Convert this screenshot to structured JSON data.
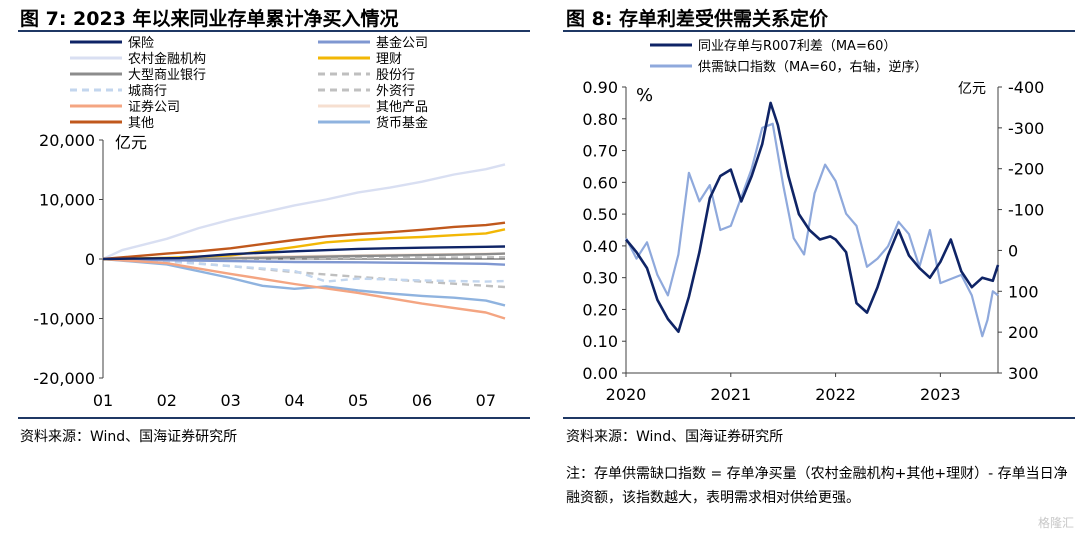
{
  "left_title": "图 7:  2023 年以来同业存单累计净买入情况",
  "right_title": "图 8:  存单利差受供需关系定价",
  "left_source": "资料来源：Wind、国海证券研究所",
  "right_source": "资料来源：Wind、国海证券研究所",
  "right_note": "注：存单供需缺口指数 = 存单净买量（农村金融机构+其他+理财）- 存单当日净融资额，该指数越大，表明需求相对供给更强。",
  "watermark": "格隆汇",
  "colors": {
    "rule": "#1f3864",
    "insurance": "#0f2466",
    "fund": "#7f97d1",
    "rural": "#d9dff2",
    "wealth": "#f2b705",
    "large_bank": "#8c8c8c",
    "joint_stock": "#bfbfbf",
    "city_bank": "#c3d6ee",
    "foreign": "#c0c0c0",
    "securities": "#f4a582",
    "other_products": "#f6dfd0",
    "others": "#c0581c",
    "money_fund": "#8fb3df",
    "spread": "#0f2466",
    "gap": "#8fa9dc"
  },
  "chart_data": [
    {
      "type": "line",
      "title": "2023 年以来同业存单累计净买入情况",
      "unit": "亿元",
      "x_ticks": [
        "01",
        "02",
        "03",
        "04",
        "05",
        "06",
        "07"
      ],
      "x_range": [
        0,
        6.3
      ],
      "ylim": [
        -20000,
        20000
      ],
      "y_ticks": [
        20000,
        10000,
        0,
        -10000,
        -20000
      ],
      "y_tick_labels": [
        "20,000",
        "10,000",
        "0",
        "-10,000",
        "-20,000"
      ],
      "legend_position": "top",
      "series": [
        {
          "key": "insurance",
          "name": "保险",
          "dash": false,
          "points": [
            [
              0,
              0
            ],
            [
              1.2,
              150
            ],
            [
              2,
              800
            ],
            [
              3,
              1300
            ],
            [
              4,
              1700
            ],
            [
              5,
              1900
            ],
            [
              6,
              2050
            ],
            [
              6.3,
              2100
            ]
          ]
        },
        {
          "key": "fund",
          "name": "基金公司",
          "dash": false,
          "points": [
            [
              0,
              0
            ],
            [
              1,
              -200
            ],
            [
              2,
              -350
            ],
            [
              3,
              -500
            ],
            [
              4,
              -550
            ],
            [
              5,
              -650
            ],
            [
              6,
              -800
            ],
            [
              6.3,
              -950
            ]
          ]
        },
        {
          "key": "rural",
          "name": "农村金融机构",
          "dash": false,
          "points": [
            [
              0,
              0
            ],
            [
              0.3,
              1500
            ],
            [
              1,
              3400
            ],
            [
              1.5,
              5200
            ],
            [
              2,
              6600
            ],
            [
              2.5,
              7800
            ],
            [
              3,
              9000
            ],
            [
              3.5,
              10000
            ],
            [
              4,
              11200
            ],
            [
              4.5,
              12000
            ],
            [
              5,
              13000
            ],
            [
              5.5,
              14200
            ],
            [
              6,
              15100
            ],
            [
              6.3,
              15900
            ]
          ]
        },
        {
          "key": "wealth",
          "name": "理财",
          "dash": false,
          "points": [
            [
              0,
              0
            ],
            [
              1,
              200
            ],
            [
              2,
              600
            ],
            [
              2.5,
              1300
            ],
            [
              3,
              2000
            ],
            [
              3.5,
              2800
            ],
            [
              4,
              3200
            ],
            [
              4.5,
              3500
            ],
            [
              5,
              3700
            ],
            [
              5.5,
              4000
            ],
            [
              6,
              4300
            ],
            [
              6.3,
              5000
            ]
          ]
        },
        {
          "key": "large_bank",
          "name": "大型商业银行",
          "dash": false,
          "points": [
            [
              0,
              0
            ],
            [
              1,
              -100
            ],
            [
              2,
              100
            ],
            [
              3,
              300
            ],
            [
              4,
              500
            ],
            [
              5,
              650
            ],
            [
              6,
              800
            ],
            [
              6.3,
              900
            ]
          ]
        },
        {
          "key": "joint_stock",
          "name": "股份行",
          "dash": true,
          "points": [
            [
              0,
              0
            ],
            [
              1,
              -300
            ],
            [
              2,
              -1200
            ],
            [
              3,
              -2200
            ],
            [
              4,
              -3000
            ],
            [
              5,
              -3800
            ],
            [
              6,
              -4500
            ],
            [
              6.3,
              -4700
            ]
          ]
        },
        {
          "key": "city_bank",
          "name": "城商行",
          "dash": true,
          "points": [
            [
              0,
              0
            ],
            [
              1,
              -400
            ],
            [
              2,
              -1200
            ],
            [
              3,
              -2000
            ],
            [
              3.5,
              -3800
            ],
            [
              4,
              -3300
            ],
            [
              5,
              -3600
            ],
            [
              6,
              -3800
            ],
            [
              6.3,
              -3700
            ]
          ]
        },
        {
          "key": "foreign",
          "name": "外资行",
          "dash": true,
          "points": [
            [
              0,
              0
            ],
            [
              2,
              100
            ],
            [
              4,
              200
            ],
            [
              6.3,
              300
            ]
          ]
        },
        {
          "key": "securities",
          "name": "证券公司",
          "dash": false,
          "points": [
            [
              0,
              0
            ],
            [
              1,
              -700
            ],
            [
              2,
              -2500
            ],
            [
              3,
              -4200
            ],
            [
              4,
              -5700
            ],
            [
              5,
              -7500
            ],
            [
              6,
              -9000
            ],
            [
              6.3,
              -10000
            ]
          ]
        },
        {
          "key": "other_products",
          "name": "其他产品",
          "dash": false,
          "points": [
            [
              0,
              0
            ],
            [
              2,
              300
            ],
            [
              4,
              600
            ],
            [
              6.3,
              900
            ]
          ]
        },
        {
          "key": "others",
          "name": "其他",
          "dash": false,
          "points": [
            [
              0,
              0
            ],
            [
              1,
              900
            ],
            [
              1.5,
              1300
            ],
            [
              2,
              1800
            ],
            [
              2.5,
              2500
            ],
            [
              3,
              3200
            ],
            [
              3.5,
              3800
            ],
            [
              4,
              4200
            ],
            [
              4.5,
              4500
            ],
            [
              5,
              4900
            ],
            [
              5.5,
              5400
            ],
            [
              6,
              5700
            ],
            [
              6.3,
              6100
            ]
          ]
        },
        {
          "key": "money_fund",
          "name": "货币基金",
          "dash": false,
          "points": [
            [
              0,
              0
            ],
            [
              1,
              -900
            ],
            [
              2,
              -3200
            ],
            [
              2.5,
              -4500
            ],
            [
              3,
              -5000
            ],
            [
              3.5,
              -4600
            ],
            [
              4,
              -5300
            ],
            [
              4.5,
              -5800
            ],
            [
              5,
              -6200
            ],
            [
              5.5,
              -6500
            ],
            [
              6,
              -7000
            ],
            [
              6.3,
              -7800
            ]
          ]
        }
      ]
    },
    {
      "type": "line",
      "title": "存单利差受供需关系定价",
      "left_unit": "%",
      "right_unit": "亿元",
      "x_ticks": [
        "2020",
        "2021",
        "2022",
        "2023"
      ],
      "x_range": [
        2020,
        2023.55
      ],
      "ylim_left": [
        0,
        0.9
      ],
      "y_ticks_left": [
        "0.90",
        "0.80",
        "0.70",
        "0.60",
        "0.50",
        "0.40",
        "0.30",
        "0.20",
        "0.10",
        "0.00"
      ],
      "ylim_right": [
        -400,
        300
      ],
      "right_axis_reversed": true,
      "y_ticks_right": [
        "-400",
        "-300",
        "-200",
        "-100",
        "0",
        "100",
        "200",
        "300"
      ],
      "legend_position": "top",
      "series": [
        {
          "key": "spread",
          "name": "同业存单与R007利差（MA=60）",
          "axis": "left",
          "points": [
            [
              2020.0,
              0.42
            ],
            [
              2020.1,
              0.38
            ],
            [
              2020.2,
              0.33
            ],
            [
              2020.3,
              0.23
            ],
            [
              2020.4,
              0.17
            ],
            [
              2020.5,
              0.13
            ],
            [
              2020.6,
              0.24
            ],
            [
              2020.7,
              0.38
            ],
            [
              2020.8,
              0.55
            ],
            [
              2020.9,
              0.62
            ],
            [
              2021.0,
              0.64
            ],
            [
              2021.1,
              0.54
            ],
            [
              2021.2,
              0.62
            ],
            [
              2021.3,
              0.72
            ],
            [
              2021.38,
              0.85
            ],
            [
              2021.45,
              0.78
            ],
            [
              2021.55,
              0.62
            ],
            [
              2021.65,
              0.5
            ],
            [
              2021.75,
              0.45
            ],
            [
              2021.85,
              0.42
            ],
            [
              2021.95,
              0.43
            ],
            [
              2022.0,
              0.42
            ],
            [
              2022.1,
              0.38
            ],
            [
              2022.2,
              0.22
            ],
            [
              2022.3,
              0.19
            ],
            [
              2022.4,
              0.27
            ],
            [
              2022.5,
              0.37
            ],
            [
              2022.6,
              0.45
            ],
            [
              2022.7,
              0.37
            ],
            [
              2022.8,
              0.33
            ],
            [
              2022.9,
              0.3
            ],
            [
              2023.0,
              0.35
            ],
            [
              2023.1,
              0.42
            ],
            [
              2023.2,
              0.32
            ],
            [
              2023.3,
              0.27
            ],
            [
              2023.4,
              0.3
            ],
            [
              2023.5,
              0.29
            ],
            [
              2023.55,
              0.34
            ]
          ]
        },
        {
          "key": "gap",
          "name": "供需缺口指数（MA=60，右轴，逆序）",
          "axis": "right",
          "points": [
            [
              2020.0,
              -30
            ],
            [
              2020.1,
              20
            ],
            [
              2020.2,
              -20
            ],
            [
              2020.3,
              60
            ],
            [
              2020.4,
              110
            ],
            [
              2020.5,
              10
            ],
            [
              2020.6,
              -190
            ],
            [
              2020.7,
              -120
            ],
            [
              2020.8,
              -160
            ],
            [
              2020.9,
              -50
            ],
            [
              2021.0,
              -60
            ],
            [
              2021.1,
              -130
            ],
            [
              2021.2,
              -200
            ],
            [
              2021.3,
              -300
            ],
            [
              2021.4,
              -310
            ],
            [
              2021.5,
              -160
            ],
            [
              2021.6,
              -30
            ],
            [
              2021.7,
              10
            ],
            [
              2021.8,
              -140
            ],
            [
              2021.9,
              -210
            ],
            [
              2022.0,
              -170
            ],
            [
              2022.1,
              -90
            ],
            [
              2022.2,
              -60
            ],
            [
              2022.3,
              40
            ],
            [
              2022.4,
              20
            ],
            [
              2022.5,
              -10
            ],
            [
              2022.6,
              -70
            ],
            [
              2022.7,
              -40
            ],
            [
              2022.8,
              40
            ],
            [
              2022.9,
              -50
            ],
            [
              2023.0,
              80
            ],
            [
              2023.1,
              70
            ],
            [
              2023.2,
              60
            ],
            [
              2023.3,
              110
            ],
            [
              2023.4,
              210
            ],
            [
              2023.45,
              170
            ],
            [
              2023.5,
              100
            ],
            [
              2023.55,
              110
            ]
          ]
        }
      ]
    }
  ]
}
